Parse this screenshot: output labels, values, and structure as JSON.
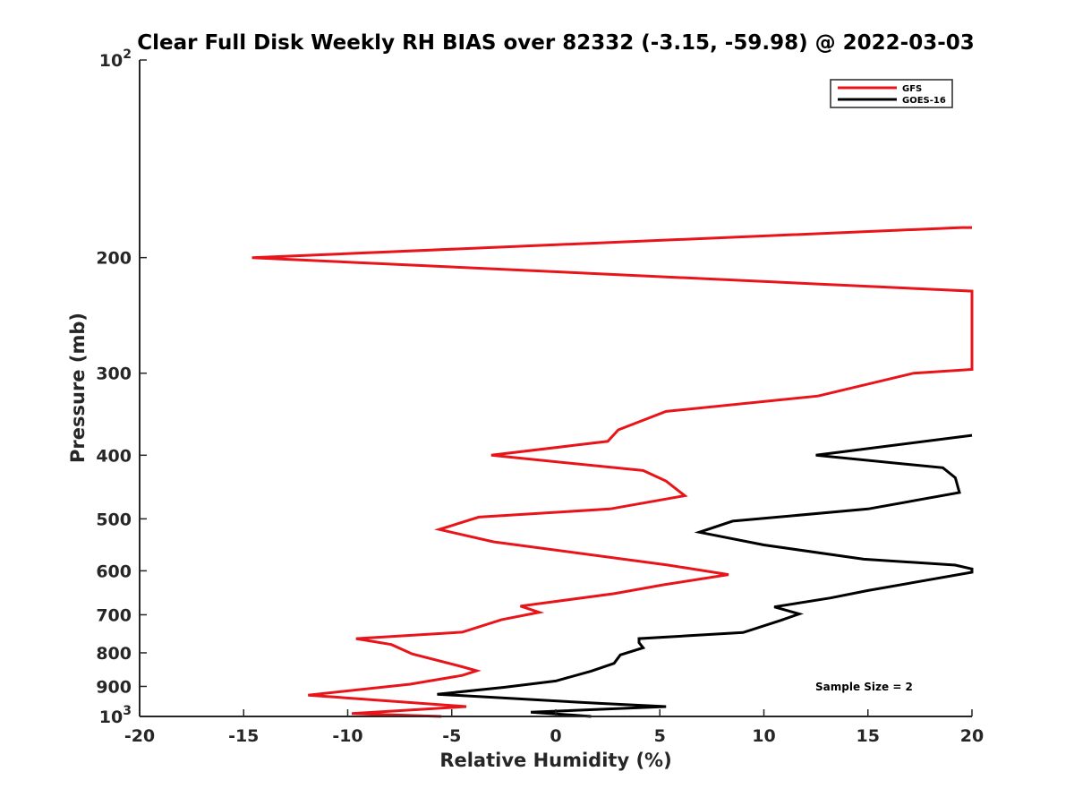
{
  "chart_data": {
    "type": "line",
    "title": "Clear Full Disk Weekly RH BIAS over 82332 (-3.15, -59.98) @ 2022-03-03",
    "xlabel": "Relative Humidity (%)",
    "ylabel": "Pressure (mb)",
    "xlim": [
      -20,
      20
    ],
    "ylim": [
      100,
      1000
    ],
    "yscale": "log",
    "y_reversed": true,
    "grid": false,
    "legend_position": "top-right",
    "x_ticks": [
      "-20",
      "-15",
      "-10",
      "-5",
      "0",
      "5",
      "10",
      "15",
      "20"
    ],
    "y_ticks": [
      {
        "value": 100,
        "base": "10",
        "exp": "2"
      },
      {
        "value": 200,
        "label": "200"
      },
      {
        "value": 300,
        "label": "300"
      },
      {
        "value": 400,
        "label": "400"
      },
      {
        "value": 500,
        "label": "500"
      },
      {
        "value": 600,
        "label": "600"
      },
      {
        "value": 700,
        "label": "700"
      },
      {
        "value": 800,
        "label": "800"
      },
      {
        "value": 900,
        "label": "900"
      },
      {
        "value": 1000,
        "base": "10",
        "exp": "3"
      }
    ],
    "series": [
      {
        "name": "GFS",
        "color": "#e8141a",
        "points": [
          [
            20.0,
            180
          ],
          [
            19.5,
            180
          ],
          [
            -14.6,
            200
          ],
          [
            20.0,
            225
          ],
          [
            20.0,
            296
          ],
          [
            17.2,
            300
          ],
          [
            12.6,
            325
          ],
          [
            5.3,
            343
          ],
          [
            3.0,
            366
          ],
          [
            2.5,
            381
          ],
          [
            -3.1,
            400
          ],
          [
            4.2,
            422
          ],
          [
            5.3,
            438
          ],
          [
            6.2,
            461
          ],
          [
            2.6,
            483
          ],
          [
            -3.7,
            497
          ],
          [
            -5.6,
            519
          ],
          [
            -3.0,
            542
          ],
          [
            5.4,
            588
          ],
          [
            8.3,
            608
          ],
          [
            5.2,
            630
          ],
          [
            2.8,
            650
          ],
          [
            -1.7,
            679
          ],
          [
            -0.8,
            694
          ],
          [
            -2.6,
            712
          ],
          [
            -4.5,
            744
          ],
          [
            -9.6,
            761
          ],
          [
            -7.9,
            777
          ],
          [
            -6.9,
            803
          ],
          [
            -4.5,
            840
          ],
          [
            -3.8,
            852
          ],
          [
            -4.5,
            866
          ],
          [
            -7.0,
            893
          ],
          [
            -11.9,
            928
          ],
          [
            -4.3,
            966
          ],
          [
            -9.8,
            990
          ],
          [
            -5.5,
            1000
          ]
        ]
      },
      {
        "name": "GOES-16",
        "color": "#000000",
        "points": [
          [
            20.0,
            373
          ],
          [
            12.5,
            400
          ],
          [
            18.6,
            418
          ],
          [
            19.2,
            433
          ],
          [
            19.4,
            456
          ],
          [
            15.0,
            483
          ],
          [
            8.5,
            504
          ],
          [
            6.9,
            524
          ],
          [
            10.0,
            548
          ],
          [
            14.8,
            576
          ],
          [
            19.2,
            588
          ],
          [
            20.0,
            596
          ],
          [
            20.0,
            603
          ],
          [
            15.0,
            643
          ],
          [
            13.2,
            660
          ],
          [
            10.5,
            681
          ],
          [
            11.7,
            698
          ],
          [
            10.8,
            714
          ],
          [
            9.0,
            745
          ],
          [
            4.0,
            761
          ],
          [
            4.0,
            772
          ],
          [
            4.2,
            786
          ],
          [
            3.1,
            806
          ],
          [
            2.8,
            830
          ],
          [
            1.7,
            853
          ],
          [
            0.0,
            883
          ],
          [
            -2.5,
            903
          ],
          [
            -5.7,
            925
          ],
          [
            2.0,
            955
          ],
          [
            5.3,
            966
          ],
          [
            -1.2,
            985
          ],
          [
            1.7,
            1000
          ]
        ]
      }
    ],
    "annotation": "Sample Size = 2"
  }
}
